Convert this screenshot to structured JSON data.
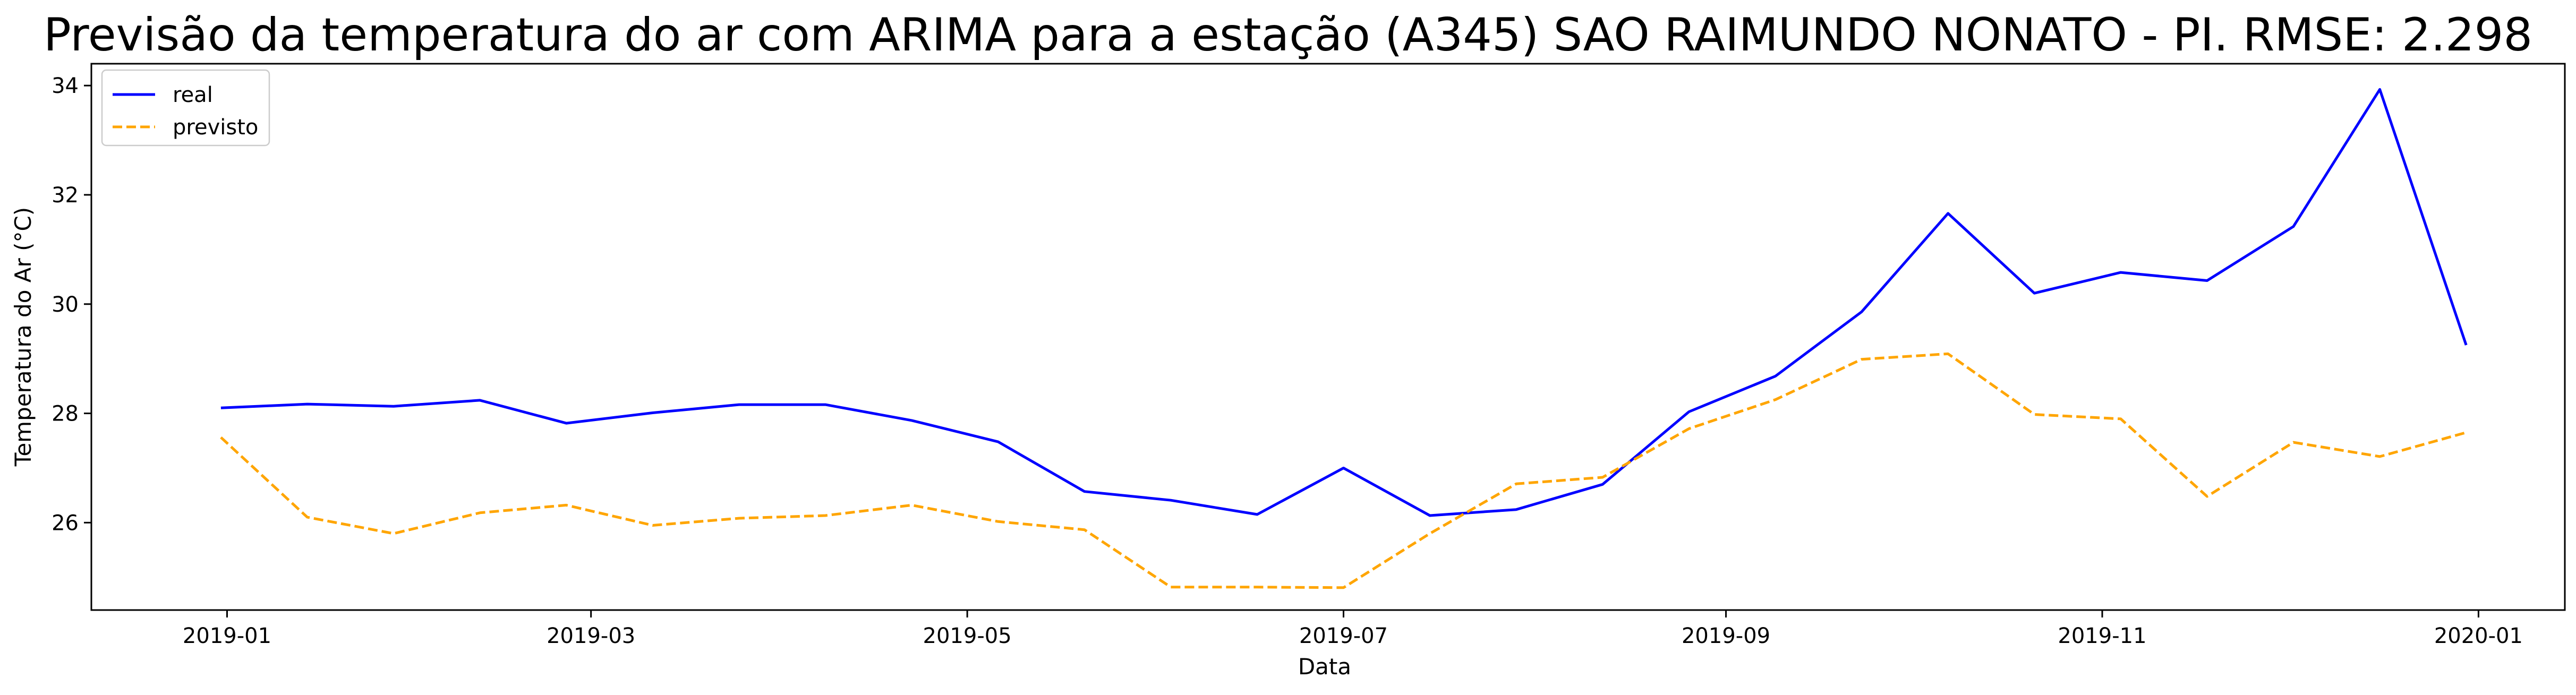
{
  "chart_data": {
    "type": "line",
    "title": "Previsão da temperatura do ar com ARIMA para a estação (A345) SAO RAIMUNDO NONATO - PI. RMSE: 2.298",
    "xlabel": "Data",
    "ylabel": "Temperatura do Ar (°C)",
    "xlim": [
      "2018-12-10",
      "2020-01-15"
    ],
    "ylim": [
      24.4,
      34.4
    ],
    "x_ticks": [
      "2019-01",
      "2019-03",
      "2019-05",
      "2019-07",
      "2019-09",
      "2019-11",
      "2020-01"
    ],
    "y_ticks": [
      26,
      28,
      30,
      32,
      34
    ],
    "grid": false,
    "legend_position": "top-left",
    "x": [
      "2018-12-31",
      "2019-01-14",
      "2019-01-28",
      "2019-02-11",
      "2019-02-25",
      "2019-03-11",
      "2019-03-25",
      "2019-04-08",
      "2019-04-22",
      "2019-05-06",
      "2019-05-20",
      "2019-06-03",
      "2019-06-17",
      "2019-07-01",
      "2019-07-15",
      "2019-07-29",
      "2019-08-12",
      "2019-08-26",
      "2019-09-09",
      "2019-09-23",
      "2019-10-07",
      "2019-10-21",
      "2019-11-04",
      "2019-11-18",
      "2019-12-02",
      "2019-12-16",
      "2019-12-30"
    ],
    "series": [
      {
        "name": "real",
        "color": "#0000ff",
        "style": "solid",
        "values": [
          28.1,
          28.17,
          28.13,
          28.24,
          27.82,
          28.01,
          28.16,
          28.16,
          27.87,
          27.48,
          26.57,
          26.41,
          26.15,
          27.0,
          26.13,
          26.24,
          26.7,
          28.03,
          28.68,
          29.86,
          31.66,
          30.2,
          30.58,
          30.43,
          31.42,
          33.93,
          29.25
        ]
      },
      {
        "name": "previsto",
        "color": "#ffa500",
        "style": "dashed",
        "values": [
          27.56,
          26.1,
          25.8,
          26.18,
          26.32,
          25.95,
          26.08,
          26.13,
          26.32,
          26.02,
          25.87,
          24.82,
          24.82,
          24.81,
          25.8,
          26.71,
          26.83,
          27.72,
          28.25,
          28.99,
          29.09,
          27.98,
          27.9,
          26.48,
          27.47,
          27.21,
          27.65
        ]
      }
    ]
  }
}
